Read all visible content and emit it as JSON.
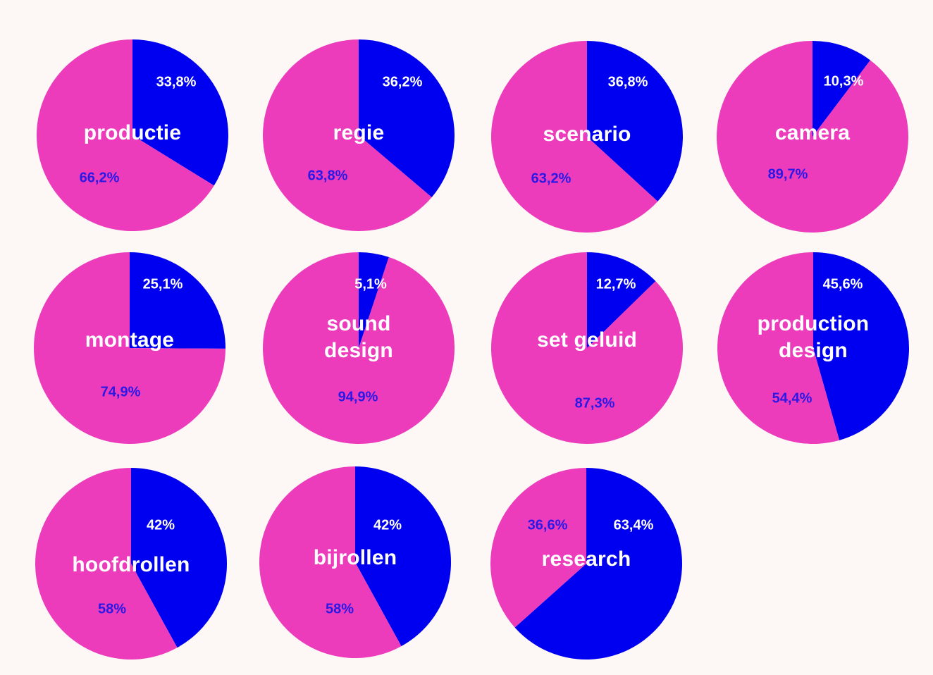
{
  "colors": {
    "background": "#fdf7f5",
    "pink": "#ec3cbc",
    "blue": "#0000f0",
    "label_on_blue": "#ffffff",
    "label_on_pink": "#2a19e6",
    "title": "#ffffff"
  },
  "chart_data": [
    {
      "type": "pie",
      "title": "productie",
      "slices": [
        {
          "label": "33,8%",
          "value": 33.8,
          "color": "blue"
        },
        {
          "label": "66,2%",
          "value": 66.2,
          "color": "pink"
        }
      ]
    },
    {
      "type": "pie",
      "title": "regie",
      "slices": [
        {
          "label": "36,2%",
          "value": 36.2,
          "color": "blue"
        },
        {
          "label": "63,8%",
          "value": 63.8,
          "color": "pink"
        }
      ]
    },
    {
      "type": "pie",
      "title": "scenario",
      "slices": [
        {
          "label": "36,8%",
          "value": 36.8,
          "color": "blue"
        },
        {
          "label": "63,2%",
          "value": 63.2,
          "color": "pink"
        }
      ]
    },
    {
      "type": "pie",
      "title": "camera",
      "slices": [
        {
          "label": "10,3%",
          "value": 10.3,
          "color": "blue"
        },
        {
          "label": "89,7%",
          "value": 89.7,
          "color": "pink"
        }
      ]
    },
    {
      "type": "pie",
      "title": "montage",
      "slices": [
        {
          "label": "25,1%",
          "value": 25.1,
          "color": "blue"
        },
        {
          "label": "74,9%",
          "value": 74.9,
          "color": "pink"
        }
      ]
    },
    {
      "type": "pie",
      "title": "sound\ndesign",
      "slices": [
        {
          "label": "5,1%",
          "value": 5.1,
          "color": "blue"
        },
        {
          "label": "94,9%",
          "value": 94.9,
          "color": "pink"
        }
      ]
    },
    {
      "type": "pie",
      "title": "set geluid",
      "slices": [
        {
          "label": "12,7%",
          "value": 12.7,
          "color": "blue"
        },
        {
          "label": "87,3%",
          "value": 87.3,
          "color": "pink"
        }
      ]
    },
    {
      "type": "pie",
      "title": "production\ndesign",
      "slices": [
        {
          "label": "45,6%",
          "value": 45.6,
          "color": "blue"
        },
        {
          "label": "54,4%",
          "value": 54.4,
          "color": "pink"
        }
      ]
    },
    {
      "type": "pie",
      "title": "hoofdrollen",
      "slices": [
        {
          "label": "42%",
          "value": 42,
          "color": "blue"
        },
        {
          "label": "58%",
          "value": 58,
          "color": "pink"
        }
      ]
    },
    {
      "type": "pie",
      "title": "bijrollen",
      "slices": [
        {
          "label": "42%",
          "value": 42,
          "color": "blue"
        },
        {
          "label": "58%",
          "value": 58,
          "color": "pink"
        }
      ]
    },
    {
      "type": "pie",
      "title": "research",
      "slices": [
        {
          "label": "63,4%",
          "value": 63.4,
          "color": "blue"
        },
        {
          "label": "36,6%",
          "value": 36.6,
          "color": "pink"
        }
      ]
    }
  ]
}
